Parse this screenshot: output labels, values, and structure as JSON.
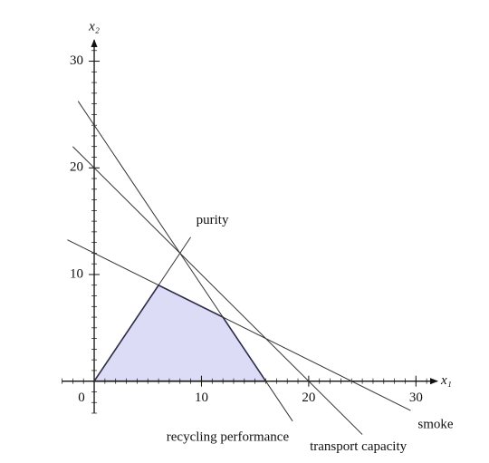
{
  "chart_data": {
    "type": "line",
    "xlabel": "x₁",
    "ylabel": "x₂",
    "xlim": [
      -3,
      32
    ],
    "ylim": [
      -3,
      32
    ],
    "xticks": [
      0,
      10,
      20,
      30
    ],
    "yticks": [
      10,
      20,
      30
    ],
    "minor_tick_interval": 1,
    "region": {
      "x": [
        0,
        6,
        12,
        16
      ],
      "values": [
        0,
        9,
        6,
        0
      ],
      "color": "#dcdcf6",
      "edge_color": "#1f1f70"
    },
    "series": [
      {
        "name": "purity",
        "color": "#333333",
        "x": [
          0,
          9
        ],
        "values": [
          0,
          13.5
        ]
      },
      {
        "name": "recycling performance",
        "color": "#333333",
        "x": [
          -1.5,
          18.5
        ],
        "values": [
          26.25,
          -3.75
        ]
      },
      {
        "name": "transport capacity",
        "color": "#333333",
        "x": [
          -2,
          25
        ],
        "values": [
          22,
          -5
        ]
      },
      {
        "name": "smoke",
        "color": "#333333",
        "x": [
          -2.5,
          29.5
        ],
        "values": [
          13.25,
          -2.75
        ]
      }
    ]
  }
}
